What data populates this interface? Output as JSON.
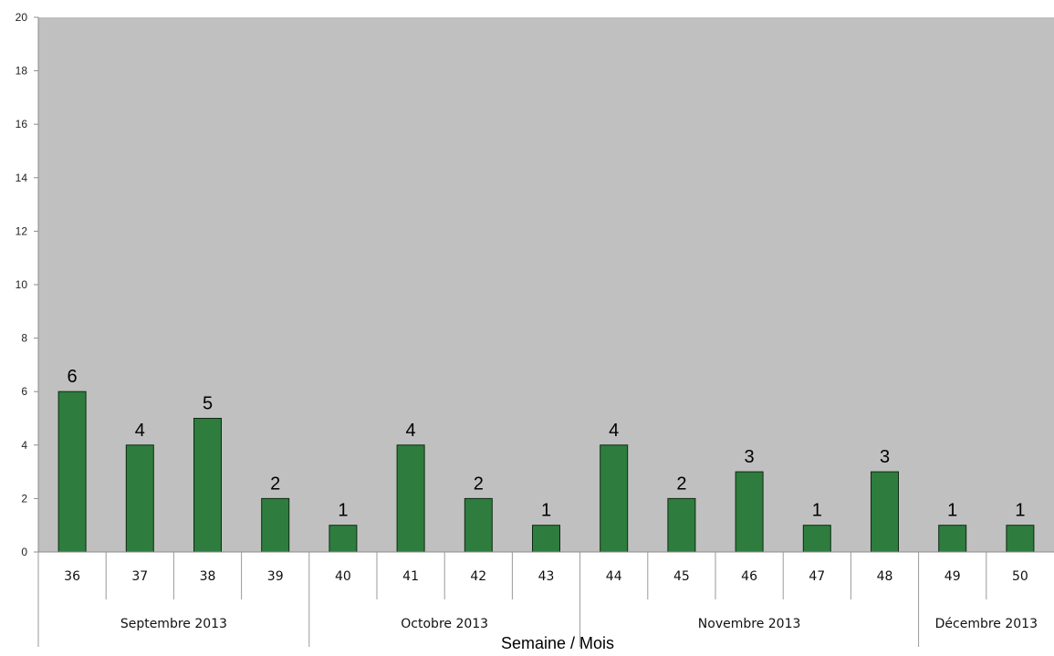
{
  "colors": {
    "plot_background": "#c0c0c0",
    "bar_fill": "#2e7d3e",
    "bar_stroke": "#0e2a12"
  },
  "chart_data": {
    "type": "bar",
    "title": "",
    "xlabel": "Semaine /  Mois",
    "ylabel": "",
    "ylim": [
      0,
      20
    ],
    "yticks": [
      0,
      2,
      4,
      6,
      8,
      10,
      12,
      14,
      16,
      18,
      20
    ],
    "grid": false,
    "categories": [
      "36",
      "37",
      "38",
      "39",
      "40",
      "41",
      "42",
      "43",
      "44",
      "45",
      "46",
      "47",
      "48",
      "49",
      "50"
    ],
    "values": [
      6,
      4,
      5,
      2,
      1,
      4,
      2,
      1,
      4,
      2,
      3,
      1,
      3,
      1,
      1
    ],
    "data_labels": true,
    "groups": [
      {
        "label": "Septembre 2013",
        "count": 4
      },
      {
        "label": "Octobre 2013",
        "count": 4
      },
      {
        "label": "Novembre 2013",
        "count": 5
      },
      {
        "label": "Décembre 2013",
        "count": 2
      }
    ]
  }
}
